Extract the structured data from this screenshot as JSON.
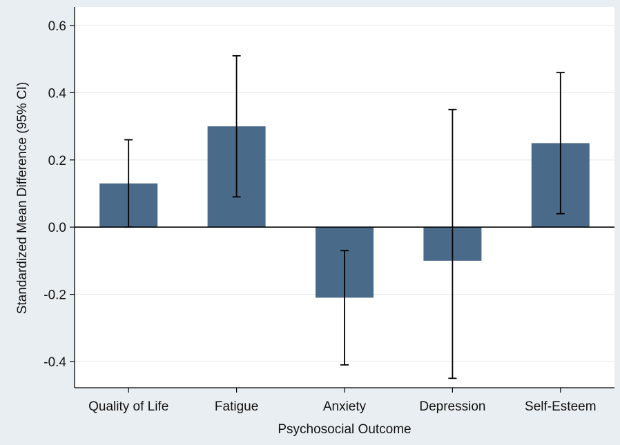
{
  "chart_data": {
    "type": "bar",
    "title": "",
    "xlabel": "Psychosocial Outcome",
    "ylabel": "Standardized Mean Difference (95% CI)",
    "categories": [
      "Quality of Life",
      "Fatigue",
      "Anxiety",
      "Depression",
      "Self-Esteem"
    ],
    "values": [
      0.13,
      0.3,
      -0.21,
      -0.1,
      0.25
    ],
    "ci_lower": [
      0.0,
      0.09,
      -0.41,
      -0.45,
      0.04
    ],
    "ci_upper": [
      0.26,
      0.51,
      -0.07,
      0.35,
      0.46
    ],
    "ylim": [
      -0.48,
      0.65
    ],
    "yticks": [
      0.6,
      0.4,
      0.2,
      0.0,
      -0.2,
      -0.4
    ],
    "ytick_labels": [
      "0.6",
      "0.4",
      "0.2",
      "0.0",
      "-0.2",
      "-0.4"
    ],
    "grid": true,
    "colors": {
      "bar": "#4a6a8a",
      "background": "#e9eef2",
      "plot_area": "#ffffff",
      "grid": "#e6ebee",
      "axis": "#000000"
    }
  }
}
